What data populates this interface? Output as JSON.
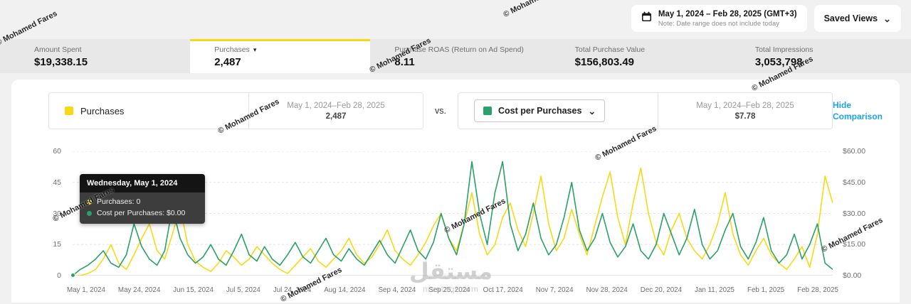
{
  "header": {
    "date_range": "May 1, 2024 – Feb 28, 2025 (GMT+3)",
    "date_note": "Note: Date range does not include today",
    "saved_views": "Saved Views"
  },
  "icons": {
    "dropdown_arrow": "▾",
    "chevron_down": "⌄"
  },
  "metrics": [
    {
      "label": "Amount Spent",
      "value": "$19,338.15"
    },
    {
      "label": "Purchases",
      "value": "2,487"
    },
    {
      "label": "Purchase ROAS (Return on Ad Spend)",
      "value": "8.11"
    },
    {
      "label": "Total Purchase Value",
      "value": "$156,803.49"
    },
    {
      "label": "Total Impressions",
      "value": "3,053,798"
    }
  ],
  "comparison": {
    "primary_label": "Purchases",
    "primary_range": "May 1, 2024–Feb 28, 2025",
    "primary_value": "2,487",
    "vs": "vs.",
    "secondary_label": "Cost per Purchases",
    "secondary_range": "May 1, 2024–Feb 28, 2025",
    "secondary_value": "$7.78",
    "hide_comparison": "Hide Comparison"
  },
  "tooltip": {
    "title": "Wednesday, May 1, 2024",
    "row1": "Purchases: 0",
    "row2": "Cost per Purchases: $0.00"
  },
  "chart_data": {
    "type": "line",
    "title": "",
    "xlabel": "",
    "ylabel_left": "Purchases",
    "ylabel_right": "Cost per Purchases",
    "ylim": [
      0,
      60
    ],
    "grid": "horizontal-dashed",
    "x_tick_labels": [
      "May 1, 2024",
      "May 24, 2024",
      "Jun 15, 2024",
      "Jul 5, 2024",
      "Jul 24, 2024",
      "Aug 14, 2024",
      "Sep 4, 2024",
      "Sep 25, 2024",
      "Oct 17, 2024",
      "Nov 7, 2024",
      "Nov 28, 2024",
      "Dec 20, 2024",
      "Jan 11, 2025",
      "Feb 1, 2025",
      "Feb 28, 2025"
    ],
    "y_left_ticks": [
      "0",
      "15",
      "30",
      "45",
      "60"
    ],
    "y_right_ticks": [
      "$0.00",
      "$15.00",
      "$30.00",
      "$45.00",
      "$60.00"
    ],
    "series": [
      {
        "name": "Purchases",
        "axis": "left",
        "color": "#F7D917",
        "values": [
          0,
          0,
          1,
          3,
          8,
          15,
          6,
          3,
          10,
          18,
          25,
          12,
          8,
          20,
          33,
          15,
          7,
          4,
          2,
          6,
          12,
          9,
          5,
          8,
          14,
          10,
          6,
          3,
          1,
          5,
          9,
          13,
          7,
          4,
          8,
          12,
          18,
          10,
          6,
          9,
          15,
          22,
          12,
          8,
          5,
          10,
          16,
          24,
          30,
          18,
          12,
          25,
          40,
          20,
          10,
          15,
          28,
          35,
          22,
          14,
          30,
          48,
          25,
          12,
          18,
          32,
          20,
          10,
          24,
          38,
          50,
          28,
          15,
          35,
          52,
          30,
          16,
          10,
          22,
          30,
          18,
          12,
          8,
          15,
          25,
          40,
          20,
          10,
          5,
          12,
          18,
          10,
          6,
          3,
          8,
          14,
          4,
          20,
          48,
          35
        ]
      },
      {
        "name": "Cost per Purchases",
        "axis": "right",
        "color": "#2AA06A",
        "values": [
          0,
          3,
          5,
          8,
          12,
          6,
          4,
          10,
          25,
          14,
          8,
          5,
          12,
          33,
          18,
          10,
          6,
          9,
          15,
          8,
          5,
          12,
          20,
          10,
          7,
          14,
          8,
          5,
          10,
          16,
          9,
          6,
          12,
          18,
          10,
          7,
          13,
          8,
          5,
          11,
          17,
          10,
          6,
          14,
          22,
          12,
          8,
          16,
          30,
          18,
          10,
          25,
          55,
          30,
          15,
          40,
          55,
          25,
          12,
          20,
          35,
          18,
          10,
          15,
          28,
          45,
          22,
          12,
          18,
          30,
          16,
          9,
          14,
          25,
          12,
          8,
          15,
          30,
          20,
          10,
          18,
          32,
          15,
          8,
          12,
          22,
          30,
          14,
          8,
          16,
          28,
          12,
          6,
          10,
          20,
          8,
          15,
          25,
          6,
          3
        ]
      }
    ],
    "legend_position": "top"
  },
  "watermarks": {
    "text": "© Mohamed Fares",
    "brand": "مستقل",
    "brand_domain": "mostaql.com"
  },
  "colors": {
    "accent_yellow": "#F7D917",
    "accent_green": "#2AA06A",
    "link_blue": "#1CA3EC"
  }
}
